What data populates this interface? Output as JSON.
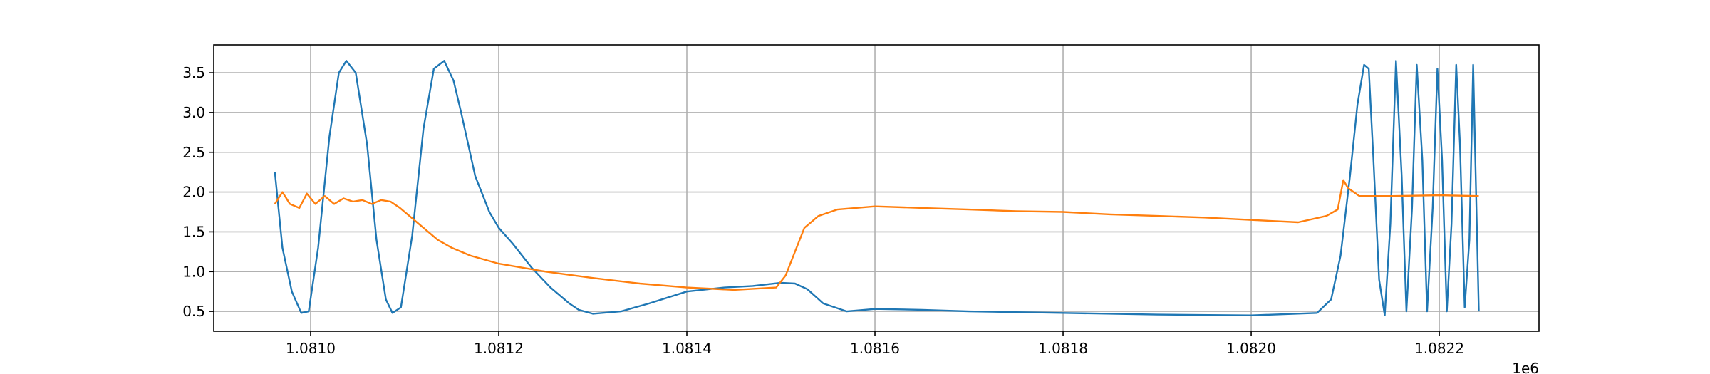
{
  "chart_data": {
    "type": "line",
    "title": "",
    "xlabel": "",
    "ylabel": "",
    "x_offset_label": "1e6",
    "xlim": [
      1080897,
      1082306
    ],
    "ylim": [
      0.25,
      3.85
    ],
    "grid": true,
    "legend": "none",
    "xticks": [
      {
        "value": 1081000,
        "label": "1.0810"
      },
      {
        "value": 1081200,
        "label": "1.0812"
      },
      {
        "value": 1081400,
        "label": "1.0814"
      },
      {
        "value": 1081600,
        "label": "1.0816"
      },
      {
        "value": 1081800,
        "label": "1.0818"
      },
      {
        "value": 1082000,
        "label": "1.0820"
      },
      {
        "value": 1082200,
        "label": "1.0822"
      }
    ],
    "yticks": [
      {
        "value": 0.5,
        "label": "0.5"
      },
      {
        "value": 1.0,
        "label": "1.0"
      },
      {
        "value": 1.5,
        "label": "1.5"
      },
      {
        "value": 2.0,
        "label": "2.0"
      },
      {
        "value": 2.5,
        "label": "2.5"
      },
      {
        "value": 3.0,
        "label": "3.0"
      },
      {
        "value": 3.5,
        "label": "3.5"
      }
    ],
    "series": [
      {
        "color": "#1f77b4",
        "x": [
          1080962,
          1080970,
          1080980,
          1080990,
          1080998,
          1081008,
          1081020,
          1081030,
          1081038,
          1081048,
          1081060,
          1081070,
          1081080,
          1081087,
          1081096,
          1081108,
          1081120,
          1081131,
          1081142,
          1081152,
          1081160,
          1081175,
          1081190,
          1081200,
          1081215,
          1081235,
          1081255,
          1081275,
          1081285,
          1081300,
          1081330,
          1081360,
          1081400,
          1081440,
          1081470,
          1081500,
          1081515,
          1081528,
          1081545,
          1081570,
          1081600,
          1081650,
          1081700,
          1081800,
          1081900,
          1082000,
          1082070,
          1082085,
          1082095,
          1082105,
          1082113,
          1082120,
          1082125,
          1082130,
          1082136,
          1082142,
          1082148,
          1082154,
          1082160,
          1082165,
          1082171,
          1082176,
          1082182,
          1082187,
          1082193,
          1082198,
          1082203,
          1082208,
          1082213,
          1082218,
          1082222,
          1082227,
          1082232,
          1082236,
          1082242
        ],
        "y": [
          2.25,
          1.3,
          0.75,
          0.48,
          0.5,
          1.3,
          2.7,
          3.5,
          3.65,
          3.5,
          2.6,
          1.4,
          0.65,
          0.48,
          0.55,
          1.45,
          2.8,
          3.55,
          3.65,
          3.4,
          3.0,
          2.2,
          1.75,
          1.55,
          1.35,
          1.05,
          0.8,
          0.6,
          0.52,
          0.47,
          0.5,
          0.6,
          0.75,
          0.8,
          0.82,
          0.86,
          0.85,
          0.78,
          0.6,
          0.5,
          0.53,
          0.52,
          0.5,
          0.48,
          0.46,
          0.45,
          0.48,
          0.65,
          1.2,
          2.2,
          3.1,
          3.6,
          3.55,
          2.4,
          0.9,
          0.45,
          1.6,
          3.65,
          2.2,
          0.5,
          1.8,
          3.6,
          2.4,
          0.5,
          1.8,
          3.55,
          2.4,
          0.5,
          1.6,
          3.6,
          2.6,
          0.55,
          1.4,
          3.6,
          0.5
        ]
      },
      {
        "color": "#ff7f0e",
        "x": [
          1080962,
          1080970,
          1080978,
          1080988,
          1080996,
          1081005,
          1081015,
          1081025,
          1081035,
          1081045,
          1081055,
          1081065,
          1081075,
          1081085,
          1081095,
          1081105,
          1081120,
          1081135,
          1081150,
          1081170,
          1081200,
          1081250,
          1081300,
          1081350,
          1081400,
          1081450,
          1081495,
          1081505,
          1081515,
          1081525,
          1081540,
          1081560,
          1081600,
          1081650,
          1081700,
          1081750,
          1081800,
          1081850,
          1081900,
          1081950,
          1082000,
          1082050,
          1082080,
          1082092,
          1082098,
          1082103,
          1082115,
          1082150,
          1082200,
          1082242
        ],
        "y": [
          1.85,
          2.0,
          1.85,
          1.8,
          1.98,
          1.85,
          1.95,
          1.85,
          1.92,
          1.88,
          1.9,
          1.85,
          1.9,
          1.88,
          1.8,
          1.7,
          1.55,
          1.4,
          1.3,
          1.2,
          1.1,
          1.0,
          0.92,
          0.85,
          0.8,
          0.77,
          0.8,
          0.95,
          1.25,
          1.55,
          1.7,
          1.78,
          1.82,
          1.8,
          1.78,
          1.76,
          1.75,
          1.72,
          1.7,
          1.68,
          1.65,
          1.62,
          1.7,
          1.78,
          2.15,
          2.05,
          1.95,
          1.95,
          1.96,
          1.95
        ]
      }
    ]
  }
}
